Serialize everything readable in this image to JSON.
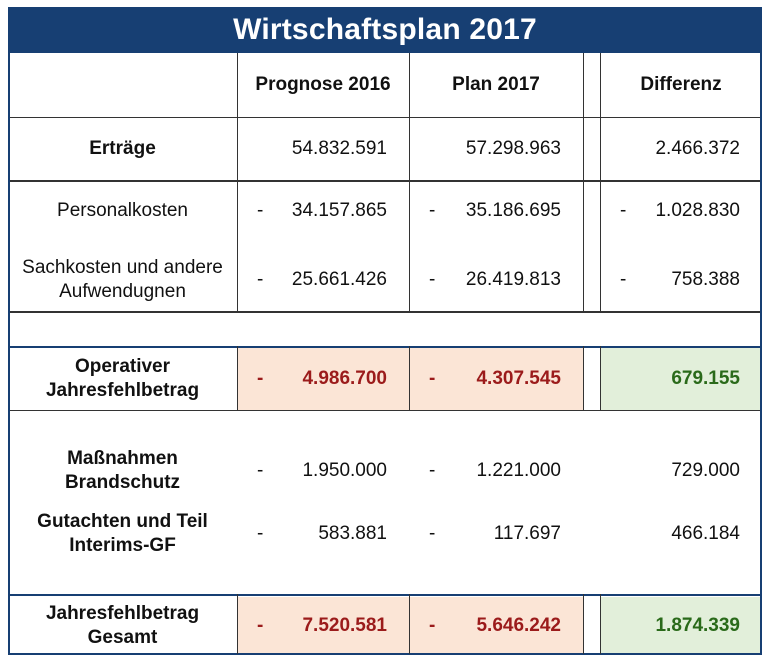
{
  "title": "Wirtschaftsplan 2017",
  "columns": [
    "Prognose 2016",
    "Plan 2017",
    "Differenz"
  ],
  "rows": {
    "ertraege": {
      "label": "Erträge",
      "prognose": "54.832.591",
      "plan": "57.298.963",
      "differenz": "2.466.372"
    },
    "personalkosten": {
      "label": "Personalkosten",
      "prognose": "34.157.865",
      "plan": "35.186.695",
      "differenz": "1.028.830"
    },
    "sachkosten": {
      "label_line1": "Sachkosten und andere",
      "label_line2": "Aufwendugnen",
      "prognose": "25.661.426",
      "plan": "26.419.813",
      "differenz": "758.388"
    },
    "operativ": {
      "label_line1": "Operativer",
      "label_line2": "Jahresfehlbetrag",
      "prognose": "4.986.700",
      "plan": "4.307.545",
      "differenz": "679.155"
    },
    "brandschutz": {
      "label_line1": "Maßnahmen",
      "label_line2": "Brandschutz",
      "prognose": "1.950.000",
      "plan": "1.221.000",
      "differenz": "729.000"
    },
    "gutachten": {
      "label_line1": "Gutachten und Teil",
      "label_line2": "Interims-GF",
      "prognose": "583.881",
      "plan": "117.697",
      "differenz": "466.184"
    },
    "gesamt": {
      "label_line1": "Jahresfehlbetrag",
      "label_line2": "Gesamt",
      "prognose": "7.520.581",
      "plan": "5.646.242",
      "differenz": "1.874.339"
    }
  },
  "minus_sign": "-",
  "colors": {
    "header_bg": "#173f73",
    "negative_highlight_bg": "#fbe5d6",
    "negative_text": "#9b1b1b",
    "positive_highlight_bg": "#e2efda",
    "positive_text": "#2a6a1a"
  }
}
